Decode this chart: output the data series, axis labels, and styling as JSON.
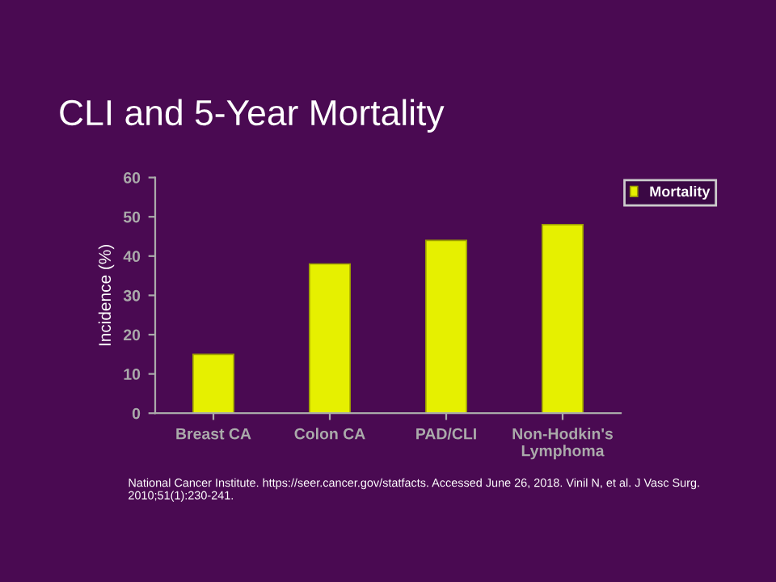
{
  "chart_data": {
    "type": "bar",
    "title": "CLI and 5-Year Mortality",
    "ylabel": "Incidence (%)",
    "categories": [
      "Breast CA",
      "Colon CA",
      "PAD/CLI",
      "Non-Hodkin's\nLymphoma"
    ],
    "series": [
      {
        "name": "Mortality",
        "color": "#e6f000",
        "values": [
          15,
          38,
          44,
          48
        ]
      }
    ],
    "ylim": [
      0,
      60
    ],
    "yticks": [
      0,
      10,
      20,
      30,
      40,
      50,
      60
    ],
    "grid": false,
    "legend": "top right",
    "annotations": [
      "National Cancer Institute. https://seer.cancer.gov/statfacts. Accessed June 26, 2018. Vinil N, et al. J Vasc Surg. 2010;51(1):230-241."
    ]
  }
}
